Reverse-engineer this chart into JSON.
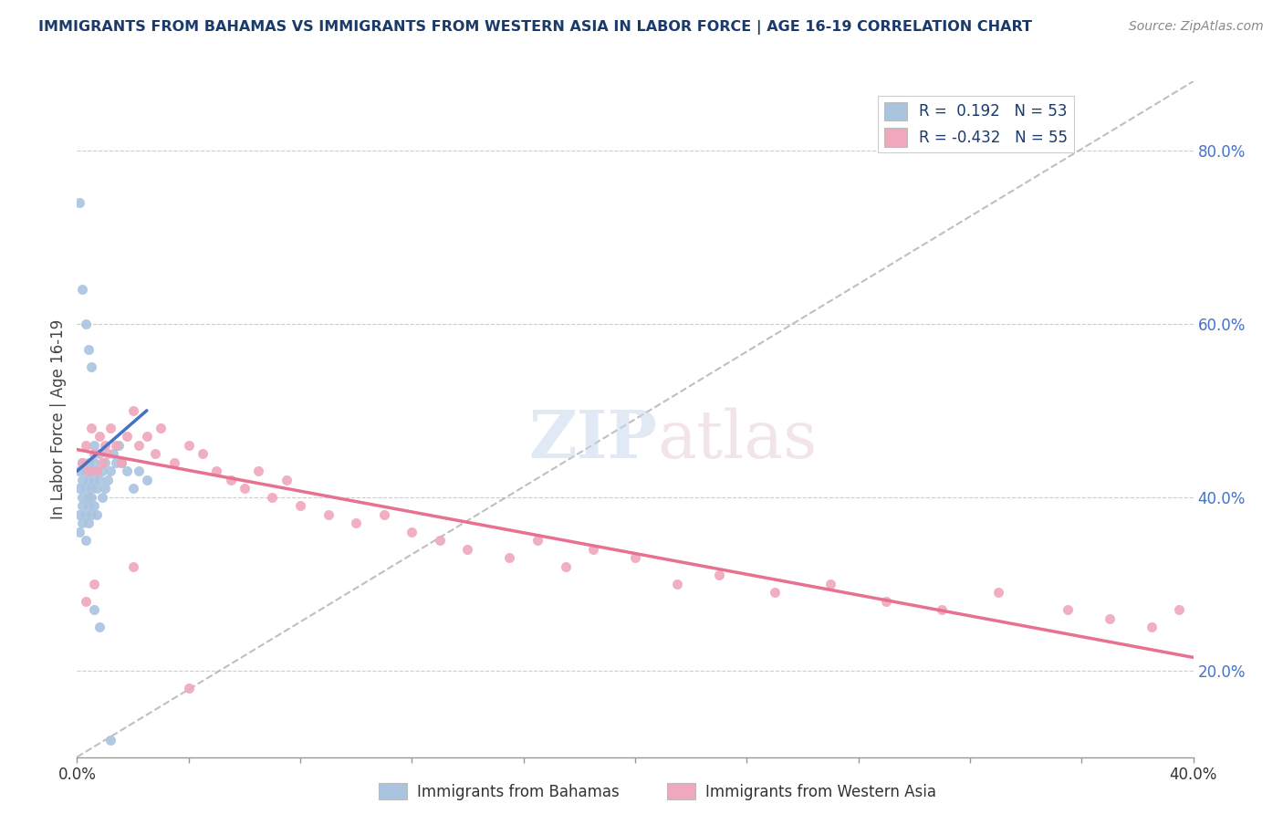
{
  "title": "IMMIGRANTS FROM BAHAMAS VS IMMIGRANTS FROM WESTERN ASIA IN LABOR FORCE | AGE 16-19 CORRELATION CHART",
  "source": "Source: ZipAtlas.com",
  "ylabel_label": "In Labor Force | Age 16-19",
  "legend_label1": "Immigrants from Bahamas",
  "legend_label2": "Immigrants from Western Asia",
  "r1": 0.192,
  "n1": 53,
  "r2": -0.432,
  "n2": 55,
  "blue_color": "#aac4e0",
  "pink_color": "#f0a8bc",
  "blue_line_color": "#4472c4",
  "pink_line_color": "#e87090",
  "ref_line_color": "#b0b0b0",
  "title_color": "#1a3a6b",
  "source_color": "#888888",
  "legend_text_color": "#1a3a6b",
  "xmin": 0.0,
  "xmax": 0.4,
  "ymin": 0.1,
  "ymax": 0.88,
  "yticks": [
    0.2,
    0.4,
    0.6,
    0.8
  ],
  "blue_x": [
    0.001,
    0.001,
    0.001,
    0.001,
    0.002,
    0.002,
    0.002,
    0.002,
    0.002,
    0.003,
    0.003,
    0.003,
    0.003,
    0.004,
    0.004,
    0.004,
    0.004,
    0.004,
    0.005,
    0.005,
    0.005,
    0.005,
    0.006,
    0.006,
    0.006,
    0.006,
    0.007,
    0.007,
    0.007,
    0.008,
    0.008,
    0.009,
    0.009,
    0.01,
    0.01,
    0.011,
    0.012,
    0.013,
    0.014,
    0.015,
    0.016,
    0.018,
    0.02,
    0.022,
    0.025,
    0.001,
    0.002,
    0.003,
    0.004,
    0.005,
    0.006,
    0.008,
    0.012
  ],
  "blue_y": [
    0.38,
    0.41,
    0.43,
    0.36,
    0.39,
    0.42,
    0.4,
    0.37,
    0.44,
    0.41,
    0.38,
    0.43,
    0.35,
    0.4,
    0.42,
    0.39,
    0.44,
    0.37,
    0.41,
    0.38,
    0.43,
    0.4,
    0.42,
    0.39,
    0.44,
    0.46,
    0.41,
    0.43,
    0.38,
    0.42,
    0.45,
    0.4,
    0.43,
    0.41,
    0.44,
    0.42,
    0.43,
    0.45,
    0.44,
    0.46,
    0.44,
    0.43,
    0.41,
    0.43,
    0.42,
    0.74,
    0.64,
    0.6,
    0.57,
    0.55,
    0.27,
    0.25,
    0.12
  ],
  "pink_x": [
    0.002,
    0.003,
    0.004,
    0.005,
    0.006,
    0.007,
    0.008,
    0.009,
    0.01,
    0.011,
    0.012,
    0.014,
    0.016,
    0.018,
    0.02,
    0.022,
    0.025,
    0.028,
    0.03,
    0.035,
    0.04,
    0.045,
    0.05,
    0.055,
    0.06,
    0.065,
    0.07,
    0.075,
    0.08,
    0.09,
    0.1,
    0.11,
    0.12,
    0.13,
    0.14,
    0.155,
    0.165,
    0.175,
    0.185,
    0.2,
    0.215,
    0.23,
    0.25,
    0.27,
    0.29,
    0.31,
    0.33,
    0.355,
    0.37,
    0.385,
    0.395,
    0.003,
    0.006,
    0.02,
    0.04
  ],
  "pink_y": [
    0.44,
    0.46,
    0.43,
    0.48,
    0.45,
    0.43,
    0.47,
    0.44,
    0.46,
    0.45,
    0.48,
    0.46,
    0.44,
    0.47,
    0.5,
    0.46,
    0.47,
    0.45,
    0.48,
    0.44,
    0.46,
    0.45,
    0.43,
    0.42,
    0.41,
    0.43,
    0.4,
    0.42,
    0.39,
    0.38,
    0.37,
    0.38,
    0.36,
    0.35,
    0.34,
    0.33,
    0.35,
    0.32,
    0.34,
    0.33,
    0.3,
    0.31,
    0.29,
    0.3,
    0.28,
    0.27,
    0.29,
    0.27,
    0.26,
    0.25,
    0.27,
    0.28,
    0.3,
    0.32,
    0.18
  ],
  "blue_line_x": [
    0.0,
    0.025
  ],
  "blue_line_y": [
    0.43,
    0.5
  ],
  "pink_line_x": [
    0.0,
    0.4
  ],
  "pink_line_y": [
    0.455,
    0.215
  ],
  "ref_line_x": [
    0.0,
    0.4
  ],
  "ref_line_y": [
    0.1,
    0.88
  ]
}
